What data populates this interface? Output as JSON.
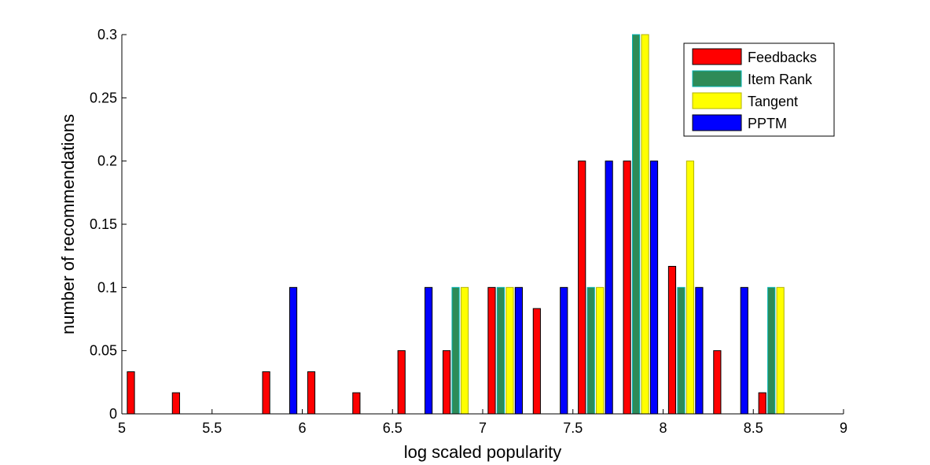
{
  "chart_data": {
    "type": "bar",
    "title": "",
    "xlabel": "log scaled popularity",
    "ylabel": "number of recommendations",
    "xlim": [
      5,
      9
    ],
    "ylim": [
      0,
      0.3
    ],
    "xticks": [
      "5",
      "5.5",
      "6",
      "6.5",
      "7",
      "7.5",
      "8",
      "8.5",
      "9"
    ],
    "yticks": [
      "0",
      "0.05",
      "0.1",
      "0.15",
      "0.2",
      "0.25",
      "0.3"
    ],
    "categories": [
      5.125,
      5.375,
      5.625,
      5.875,
      6.125,
      6.375,
      6.625,
      6.875,
      7.125,
      7.375,
      7.625,
      7.875,
      8.125,
      8.375,
      8.625,
      8.875
    ],
    "series": [
      {
        "name": "Feedbacks",
        "color": "#ff0000",
        "edge": "#000000",
        "values": [
          0.0333,
          0.0167,
          0,
          0.0333,
          0.0333,
          0.0167,
          0.05,
          0.05,
          0.1,
          0.0833,
          0.2,
          0.2,
          0.1167,
          0.05,
          0.0167,
          0
        ]
      },
      {
        "name": "Item Rank",
        "color": "#2e8b57",
        "edge": "#00b3b3",
        "values": [
          0,
          0,
          0,
          0,
          0,
          0,
          0,
          0.1,
          0.1,
          0,
          0.1,
          0.3,
          0.1,
          0,
          0.1,
          0
        ]
      },
      {
        "name": "Tangent",
        "color": "#ffff00",
        "edge": "#b3b300",
        "values": [
          0,
          0,
          0,
          0,
          0,
          0,
          0,
          0.1,
          0.1,
          0,
          0.1,
          0.3,
          0.2,
          0,
          0.1,
          0
        ]
      },
      {
        "name": "PPTM",
        "color": "#0000ff",
        "edge": "#000000",
        "values": [
          0,
          0,
          0,
          0.1,
          0,
          0,
          0.1,
          0,
          0.1,
          0.1,
          0.2,
          0.2,
          0.1,
          0.1,
          0,
          0
        ]
      }
    ],
    "grid": false,
    "legend_position": "top-right"
  }
}
